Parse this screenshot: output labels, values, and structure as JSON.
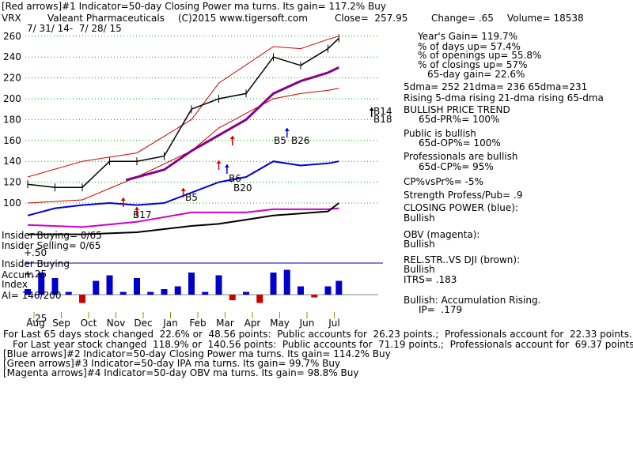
{
  "header": {
    "line1": "[Red arrows]#1 Indicator=50-day Closing Power ma turns. Its gain= 117.2% Buy",
    "ticker": "VRX",
    "company": "Valeant Pharmaceuticals",
    "copyright": "(C)2015 www.tigersoft.com",
    "close": "Close=  257.95",
    "change": "Change= .65",
    "volume": "Volume= 18538",
    "date_range": "7/ 31/ 14-  7/ 28/ 15"
  },
  "stats": {
    "years_gain": "Year's Gain= 119.7%",
    "days_up": "% of days up= 57.4%",
    "openings_up": "% of openings up= 55.8%",
    "closings_up": "% of closings up= 57%",
    "gain_65": "65-day gain= 22.6%",
    "dma": "5dma= 252 21dma= 236 65dma=231",
    "rising": "Rising 5-dma rising 21-dma rising 65-dma",
    "bullish_trend": "BULLISH PRICE TREND",
    "pr": "65d-PR%= 100%",
    "public_bullish": "Public is bullish",
    "op": "65d-OP%= 100%",
    "pros_bullish": "Professionals are bullish",
    "cp": "65d-CP%= 95%",
    "cpvspr": "CP%vsPr%= -5%",
    "strength": "Strength Profess/Pub= .9",
    "closing_power": "CLOSING POWER (blue):",
    "cp_state": "Bullish",
    "obv": "OBV (magenta):",
    "obv_state": "Bullish",
    "relstr": "REL.STR..VS DJI (brown):",
    "relstr_state": "Bullish",
    "itrs": "ITRS= .183",
    "accum": "Bullish: Accumulation Rising.",
    "ip": "IP=  .179"
  },
  "labels": {
    "insider_buying_1": "Insider Buying= 0/65",
    "insider_selling": "Insider Selling= 0/65",
    "insider_buying_2": "Insider Buying",
    "plus50": "+.50",
    "plus25": "+.25",
    "accum": "Accum",
    "index": "Index",
    "ai": "AI= 146/200",
    "minus25": "-.25"
  },
  "annotations": {
    "b14": "B14",
    "b18": "B18",
    "b5_a": "B5",
    "b26": "B26",
    "b6": "B6",
    "b20": "B20",
    "b5_b": "B5",
    "b17": "B17"
  },
  "footer": {
    "line1": "For Last 65 days stock changed  22.6% or  48.56 points:  Public accounts for  26.23 points.;  Professionals account for  22.33 points.",
    "line2": "For Last year stock changed  118.9% or  140.56 points:  Public accounts for  71.19 points.;  Professionals account for  69.37 points.",
    "line3": "[Blue arrows]#2 Indicator=50-day Closing Power ma turns. Its gain= 114.2% Buy",
    "line4": "[Green arrows]#3 Indicator=50-day IPA ma turns. Its gain= 99.7% Buy",
    "line5": "[Magenta arrows]#4 Indicator=50-day OBV ma turns. Its gain= 98.8% Buy"
  },
  "colors": {
    "price": "#000000",
    "bands": "#cc0000",
    "ma65": "#880088",
    "closing_power": "#0000dd",
    "obv": "#cc00cc",
    "relstr": "#000000",
    "accum_bar": "#0000cc",
    "accum_neg": "#cc0000",
    "grid": "#00aa00"
  },
  "chart_data": {
    "type": "line",
    "ylim": [
      90,
      265
    ],
    "yticks": [
      100,
      120,
      140,
      160,
      180,
      200,
      220,
      240,
      260
    ],
    "month_labels": [
      "Aug",
      "Sep",
      "Oct",
      "Nov",
      "Dec",
      "Jan",
      "Feb",
      "Mar",
      "Apr",
      "May",
      "Jun",
      "Jul"
    ],
    "price_t": [
      0,
      1,
      2,
      3,
      4,
      5,
      6,
      7,
      8,
      9,
      10,
      11,
      11.4
    ],
    "price": [
      118,
      115,
      115,
      140,
      140,
      145,
      190,
      200,
      205,
      240,
      232,
      248,
      258
    ],
    "ma65_t": [
      3.6,
      5,
      6,
      7,
      8,
      9,
      10,
      11,
      11.4
    ],
    "ma65": [
      122,
      132,
      150,
      165,
      180,
      205,
      217,
      225,
      230
    ],
    "upper_t": [
      0,
      2,
      4,
      6,
      7,
      9,
      10,
      11,
      11.4
    ],
    "upper": [
      125,
      140,
      148,
      180,
      215,
      250,
      248,
      257,
      260
    ],
    "lower_t": [
      0,
      2,
      4,
      6,
      7,
      9,
      10,
      11,
      11.4
    ],
    "lower": [
      100,
      103,
      125,
      150,
      172,
      200,
      205,
      208,
      210
    ],
    "closing_power_t": [
      0,
      1,
      2,
      3,
      4,
      5,
      6,
      7,
      8,
      9,
      10,
      11,
      11.4
    ],
    "closing_power": [
      88,
      95,
      98,
      100,
      98,
      100,
      110,
      120,
      125,
      140,
      136,
      138,
      140
    ],
    "obv_t": [
      0,
      2,
      4,
      6,
      7,
      8,
      9,
      10,
      11,
      11.4
    ],
    "obv": [
      79,
      77,
      82,
      91,
      91,
      91,
      94,
      94,
      94,
      95
    ],
    "relstr_t": [
      0,
      2,
      4,
      6,
      7,
      8,
      9,
      10,
      11,
      11.4
    ],
    "relstr": [
      70,
      70,
      72,
      78,
      80,
      84,
      88,
      90,
      92,
      100
    ],
    "accum_t": [
      0,
      0.5,
      1,
      1.5,
      2,
      2.5,
      3,
      3.5,
      4,
      4.5,
      5,
      5.5,
      6,
      6.5,
      7,
      7.5,
      8,
      8.5,
      9,
      9.5,
      10,
      10.5,
      11,
      11.4
    ],
    "accum": [
      0.1,
      0.4,
      0.3,
      0.05,
      -0.15,
      0.25,
      0.35,
      0.05,
      0.3,
      0.05,
      0.1,
      0.15,
      0.4,
      0.05,
      0.35,
      -0.1,
      0.05,
      -0.15,
      0.4,
      0.45,
      0.15,
      -0.05,
      0.15,
      0.25
    ]
  }
}
